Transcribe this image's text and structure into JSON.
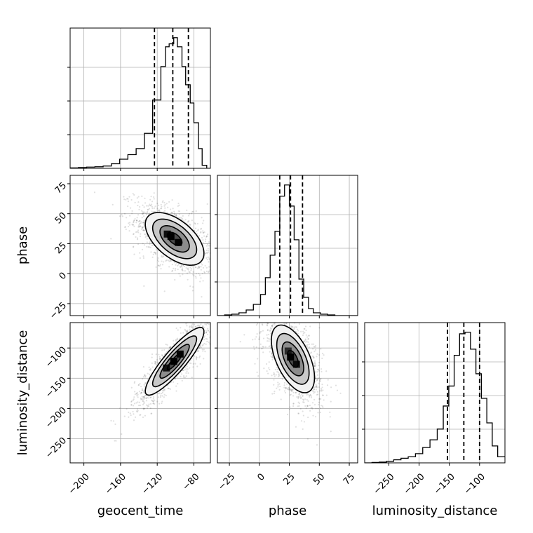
{
  "chart_data": {
    "type": "corner",
    "parameters": [
      "geocent_time",
      "phase",
      "luminosity_distance"
    ],
    "axis_labels": {
      "geocent_time": "geocent_time",
      "phase": "phase",
      "luminosity_distance": "luminosity_distance"
    },
    "ranges": {
      "geocent_time": [
        -215,
        -62
      ],
      "phase": [
        -35,
        82
      ],
      "luminosity_distance": [
        -290,
        -58
      ]
    },
    "ticks": {
      "geocent_time": [
        -200,
        -160,
        -120,
        -80
      ],
      "phase": [
        -25,
        0,
        25,
        50,
        75
      ],
      "luminosity_distance": [
        -250,
        -200,
        -150,
        -100
      ]
    },
    "tick_labels": {
      "geocent_time": [
        "−200",
        "−160",
        "−120",
        "−80"
      ],
      "phase": [
        "−25",
        "0",
        "25",
        "50",
        "75"
      ],
      "luminosity_distance": [
        "−250",
        "−200",
        "−150",
        "−100"
      ]
    },
    "quantiles": {
      "geocent_time": [
        -123,
        -103,
        -86
      ],
      "phase": [
        17,
        26,
        36
      ],
      "luminosity_distance": [
        -153,
        -126,
        -100
      ]
    },
    "histograms": {
      "geocent_time": {
        "bin_edges": [
          -215,
          -206,
          -197,
          -188,
          -179,
          -170,
          -161,
          -152,
          -143,
          -134,
          -125,
          -116,
          -111,
          -107,
          -102,
          -98,
          -93,
          -89,
          -84,
          -80,
          -75,
          -71,
          -66,
          -62
        ],
        "counts": [
          0.003,
          0.005,
          0.008,
          0.01,
          0.015,
          0.03,
          0.06,
          0.09,
          0.13,
          0.23,
          0.45,
          0.67,
          0.8,
          0.82,
          0.86,
          0.8,
          0.67,
          0.55,
          0.43,
          0.3,
          0.13,
          0.02,
          0.0
        ]
      },
      "phase": {
        "bin_edges": [
          -35,
          -29,
          -23,
          -17,
          -11,
          -5,
          1,
          5,
          9,
          13,
          17,
          21,
          25,
          29,
          33,
          37,
          41,
          45,
          51,
          57,
          63,
          69,
          75,
          82
        ],
        "counts": [
          0.0,
          0.005,
          0.01,
          0.02,
          0.04,
          0.08,
          0.15,
          0.27,
          0.43,
          0.6,
          0.85,
          0.93,
          0.78,
          0.54,
          0.26,
          0.13,
          0.05,
          0.02,
          0.01,
          0.005,
          0.0,
          0.0,
          0.0
        ]
      },
      "luminosity_distance": {
        "bin_edges": [
          -290,
          -278,
          -266,
          -254,
          -242,
          -230,
          -218,
          -206,
          -194,
          -182,
          -170,
          -160,
          -151,
          -142,
          -133,
          -124,
          -115,
          -106,
          -97,
          -88,
          -79,
          -70,
          -58
        ],
        "counts": [
          0.0,
          0.003,
          0.005,
          0.01,
          0.02,
          0.03,
          0.04,
          0.06,
          0.1,
          0.15,
          0.22,
          0.37,
          0.5,
          0.7,
          0.84,
          0.85,
          0.74,
          0.58,
          0.42,
          0.26,
          0.11,
          0.04
        ]
      }
    },
    "joint_2d": [
      {
        "x": "geocent_time",
        "y": "phase",
        "center": [
          -101,
          29
        ],
        "sigma": [
          16,
          11
        ],
        "correlation": -0.55,
        "density_cells": [
          [
            -105,
            31,
            1.0
          ],
          [
            -97,
            26,
            0.95
          ],
          [
            -109,
            33,
            0.9
          ]
        ]
      },
      {
        "x": "geocent_time",
        "y": "luminosity_distance",
        "center": [
          -101,
          -122
        ],
        "sigma": [
          16,
          28
        ],
        "correlation": 0.88,
        "density_cells": [
          [
            -102,
            -122,
            1.0
          ],
          [
            -95,
            -110,
            0.95
          ],
          [
            -110,
            -133,
            0.85
          ]
        ]
      },
      {
        "x": "phase",
        "y": "luminosity_distance",
        "center": [
          28,
          -118
        ],
        "sigma": [
          9,
          28
        ],
        "correlation": -0.55,
        "density_cells": [
          [
            26,
            -115,
            1.0
          ],
          [
            31,
            -127,
            0.85
          ],
          [
            24,
            -105,
            0.7
          ]
        ]
      }
    ],
    "contour_levels_sigma": [
      0.5,
      1.0,
      1.5,
      2.0
    ],
    "grid": true,
    "colors": {
      "line": "#000000",
      "grid": "#b0b0b0",
      "sample": "#000000"
    }
  }
}
